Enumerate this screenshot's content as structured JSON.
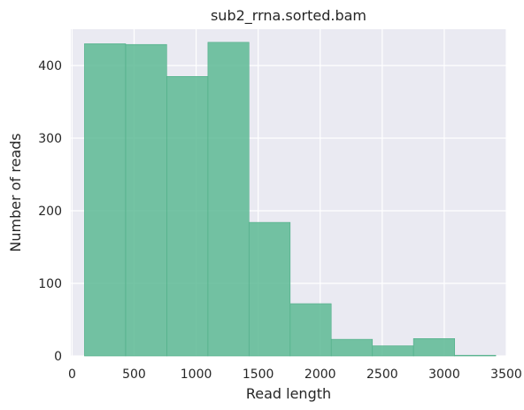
{
  "chart_data": {
    "type": "bar",
    "title": "sub2_rrna.sorted.bam",
    "xlabel": "Read length",
    "ylabel": "Number of reads",
    "xlim": [
      -10,
      3500
    ],
    "ylim": [
      0,
      450
    ],
    "xticks": [
      0,
      500,
      1000,
      1500,
      2000,
      2500,
      3000,
      3500
    ],
    "yticks": [
      0,
      100,
      200,
      300,
      400
    ],
    "bin_edges": [
      100,
      432,
      763,
      1095,
      1426,
      1758,
      2089,
      2421,
      2752,
      3084,
      3415
    ],
    "values": [
      430,
      429,
      385,
      432,
      184,
      72,
      23,
      14,
      24,
      1
    ],
    "grid": true,
    "colors": {
      "bar": "#5dba94",
      "bar_edge": "#4fae87",
      "plot_background": "#eaeaf2",
      "grid": "#ffffff",
      "text": "#262626"
    }
  }
}
